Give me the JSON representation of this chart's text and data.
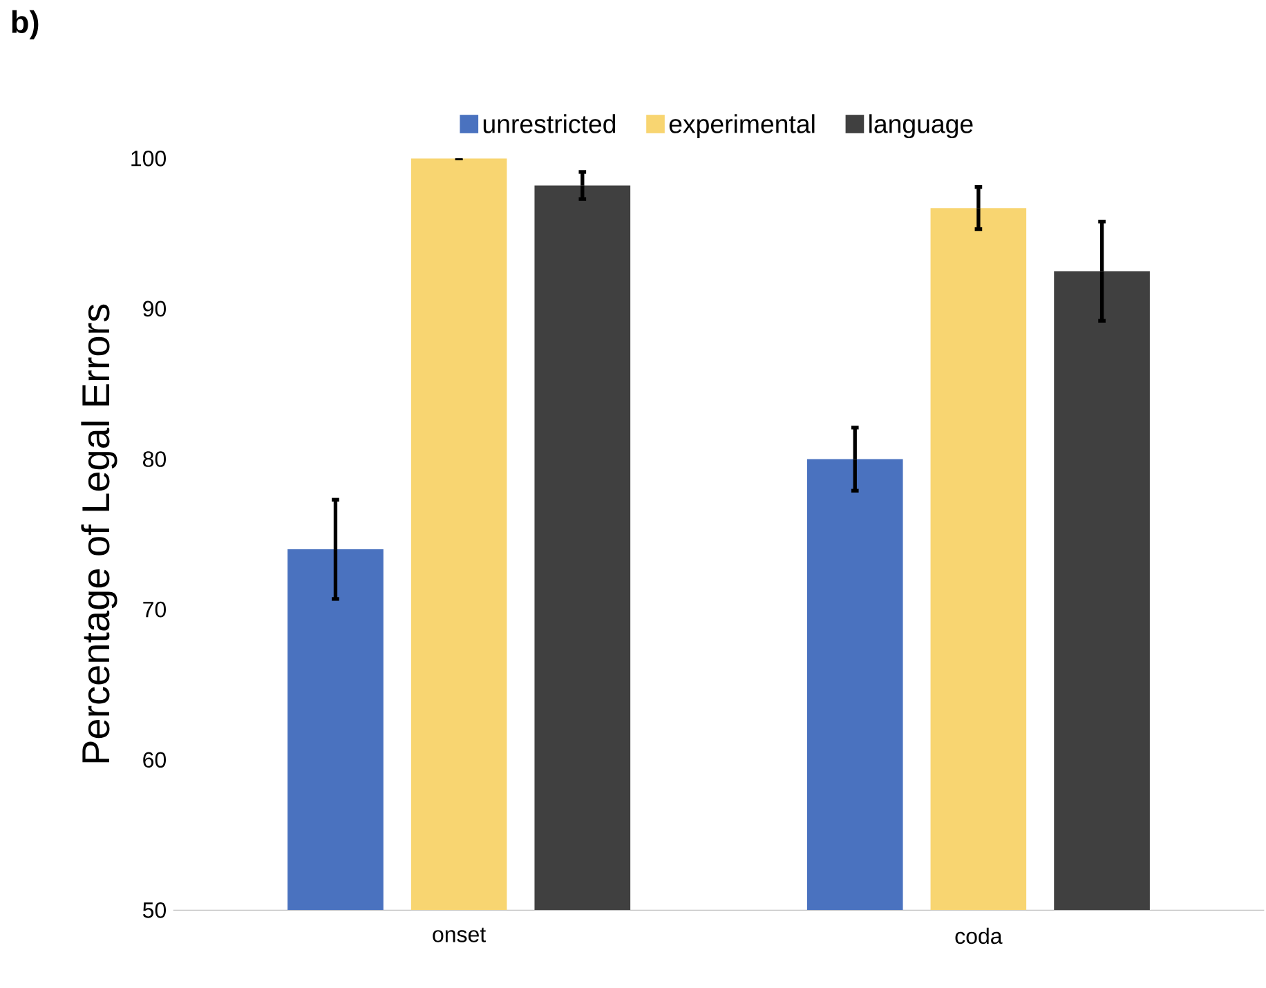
{
  "chart_data": {
    "type": "bar",
    "title": "b)",
    "ylabel": "Percentage of Legal Errors",
    "categories": [
      "onset",
      "coda"
    ],
    "series": [
      {
        "name": "unrestricted",
        "color": "#4a72bf",
        "values": [
          74.0,
          80.0
        ],
        "errors": [
          3.3,
          2.1
        ]
      },
      {
        "name": "experimental",
        "color": "#f8d571",
        "values": [
          100,
          96.7
        ],
        "errors": [
          0,
          1.4
        ]
      },
      {
        "name": "language",
        "color": "#404040",
        "values": [
          98.2,
          92.5
        ],
        "errors": [
          0.9,
          3.3
        ]
      }
    ],
    "ylim": [
      50,
      100
    ],
    "yticks": [
      50,
      60,
      70,
      80,
      90,
      100
    ],
    "legend": "top",
    "grid": false
  }
}
